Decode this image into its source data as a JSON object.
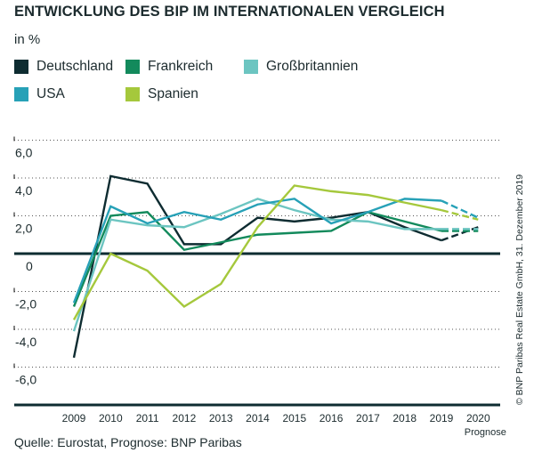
{
  "chart_data": {
    "type": "line",
    "title": "ENTWICKLUNG DES BIP IM INTERNATIONALEN VERGLEICH",
    "ylabel": "in %",
    "categories": [
      "2009",
      "2010",
      "2011",
      "2012",
      "2013",
      "2014",
      "2015",
      "2016",
      "2017",
      "2018",
      "2019",
      "2020"
    ],
    "forecast_label": "Prognose",
    "forecast_from": "2019",
    "ylim": [
      -8,
      6
    ],
    "y_ticks": [
      6,
      4,
      2,
      0,
      -2,
      -4,
      -6
    ],
    "y_tick_labels": [
      "6,0",
      "4,0",
      "2,0",
      "0",
      "-2,0",
      "-4,0",
      "-6,0"
    ],
    "grid": "horizontal dotted",
    "legend_position": "top-left",
    "series": [
      {
        "name": "Deutschland",
        "color": "#0e2c31",
        "values": [
          -5.5,
          4.1,
          3.7,
          0.5,
          0.5,
          1.9,
          1.7,
          1.9,
          2.2,
          1.4,
          0.7,
          1.4
        ]
      },
      {
        "name": "Frankreich",
        "color": "#138a5c",
        "values": [
          -2.8,
          2.0,
          2.2,
          0.2,
          0.6,
          1.0,
          1.1,
          1.2,
          2.2,
          1.7,
          1.2,
          1.2
        ]
      },
      {
        "name": "Großbritannien",
        "color": "#6cc5c1",
        "values": [
          -4.1,
          1.8,
          1.5,
          1.4,
          2.1,
          2.9,
          2.3,
          1.8,
          1.7,
          1.3,
          1.3,
          1.3
        ]
      },
      {
        "name": "USA",
        "color": "#27a1b7",
        "values": [
          -2.6,
          2.5,
          1.6,
          2.2,
          1.8,
          2.6,
          2.9,
          1.6,
          2.2,
          2.9,
          2.8,
          1.9
        ]
      },
      {
        "name": "Spanien",
        "color": "#a5c83c",
        "values": [
          -3.5,
          0.0,
          -0.9,
          -2.8,
          -1.6,
          1.4,
          3.6,
          3.3,
          3.1,
          2.7,
          2.3,
          1.8
        ]
      }
    ]
  },
  "source": "Quelle: Eurostat, Prognose: BNP Paribas",
  "copyright": "© BNP Paribas Real Estate GmbH, 31. Dezember 2019"
}
